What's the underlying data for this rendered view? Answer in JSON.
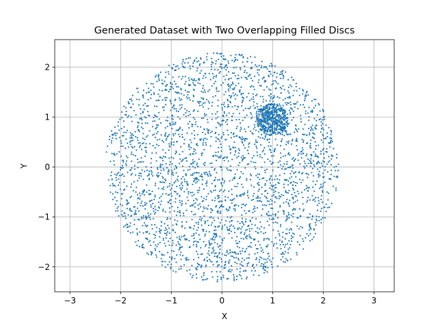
{
  "chart_data": {
    "type": "scatter",
    "title": "Generated Dataset with Two Overlapping Filled Discs",
    "xlabel": "X",
    "ylabel": "Y",
    "xlim": [
      -3.3,
      3.4
    ],
    "ylim": [
      -2.5,
      2.55
    ],
    "xticks": [
      -3,
      -2,
      -1,
      0,
      1,
      2,
      3
    ],
    "yticks": [
      -2,
      -1,
      0,
      1,
      2
    ],
    "xtick_labels": [
      "−3",
      "−2",
      "−1",
      "0",
      "1",
      "2",
      "3"
    ],
    "ytick_labels": [
      "−2",
      "−1",
      "0",
      "1",
      "2"
    ],
    "grid": true,
    "point_color": "#1f77b4",
    "series": [
      {
        "shape": "filled_disc",
        "center": [
          0.0,
          0.0
        ],
        "radius": 2.3,
        "count": 3000
      },
      {
        "shape": "filled_disc",
        "center": [
          1.0,
          0.95
        ],
        "radius": 0.32,
        "count": 500
      }
    ]
  }
}
